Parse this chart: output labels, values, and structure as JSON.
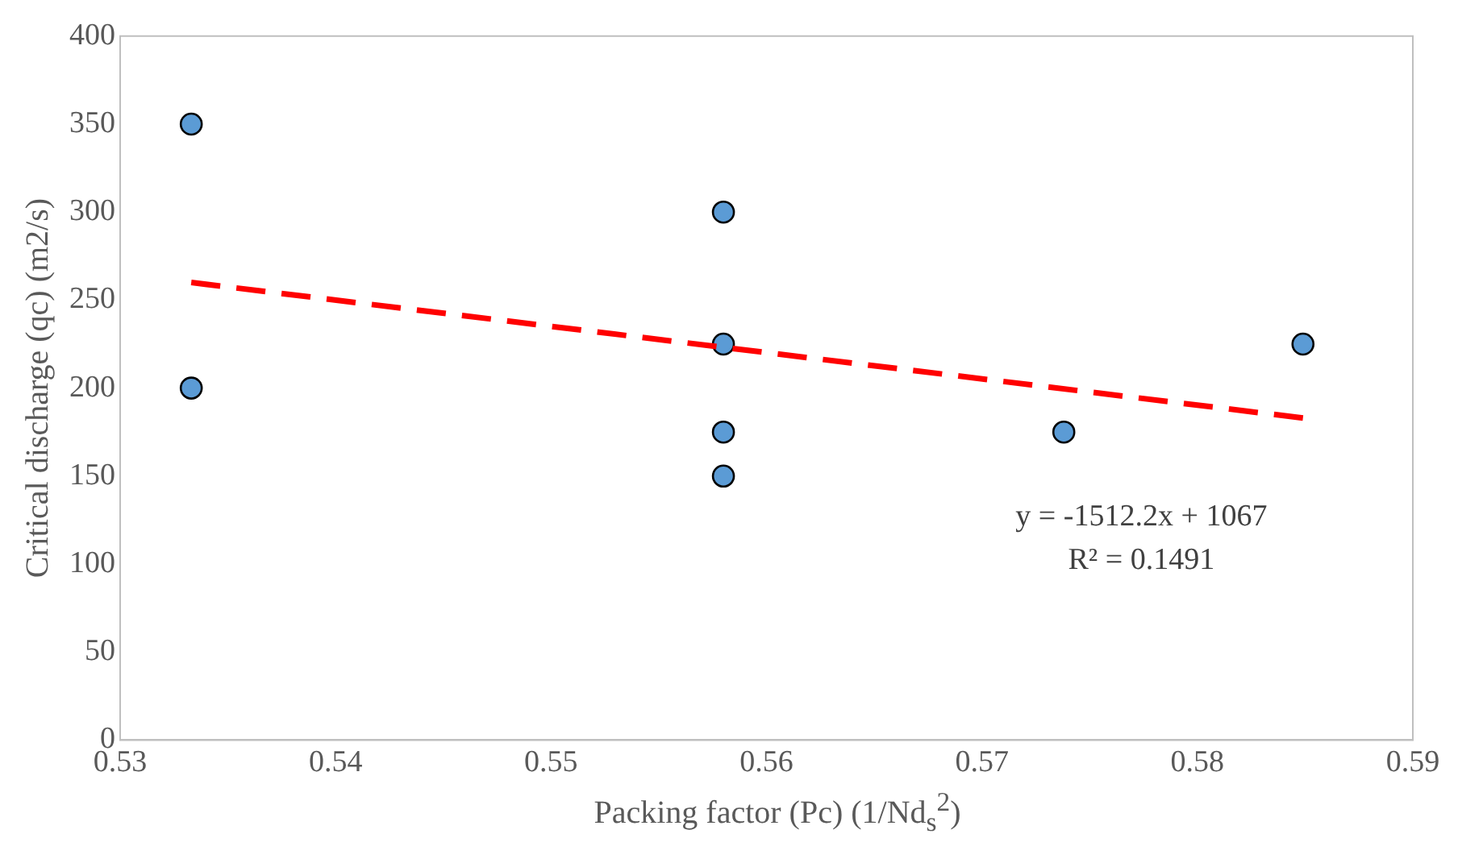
{
  "chart_data": {
    "type": "scatter",
    "xlabel": "Packing factor (Pc) (1/Nd$_{s}$$^{2}$)",
    "ylabel": "Critical discharge (qc) (m2/s)",
    "series": [
      {
        "color": "#5b9bd5",
        "x": [
          0.5333,
          0.5333,
          0.558,
          0.558,
          0.558,
          0.558,
          0.5738,
          0.5849
        ],
        "values": [
          350,
          200,
          300,
          225,
          175,
          150,
          175,
          225
        ],
        "marker": "circle"
      },
      {
        "type": "line",
        "color": "#ff0000",
        "x": [
          0.5333,
          0.5849
        ],
        "values": [
          260,
          183
        ],
        "line_style": "dashed",
        "marker": "none"
      }
    ],
    "xlim": [
      0.53,
      0.59
    ],
    "xticks": [
      0.53,
      0.54,
      0.55,
      0.56,
      0.57,
      0.58,
      0.59
    ],
    "ylim": [
      0,
      400
    ],
    "yticks": [
      0,
      50,
      100,
      150,
      200,
      250,
      300,
      350,
      400
    ],
    "annotations": [
      "y = -1512.2x + 1067",
      "R² = 0.1491"
    ],
    "grid": false,
    "legend": false
  }
}
